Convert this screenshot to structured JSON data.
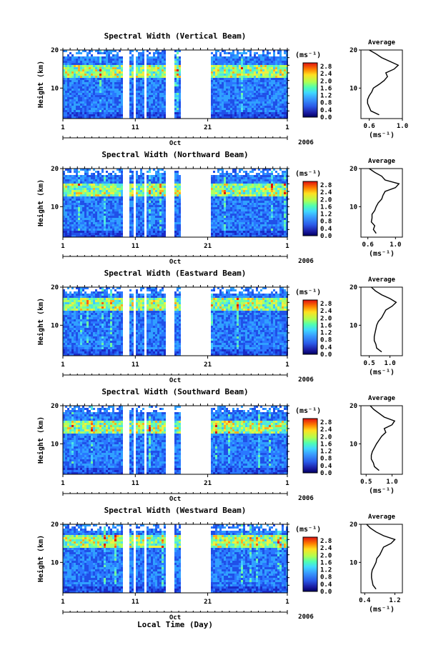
{
  "figure": {
    "xlabel": "Local Time (Day)",
    "month_label": "Oct",
    "year_label": "2006",
    "x_ticks": [
      "1",
      "11",
      "21",
      "1"
    ],
    "y_ticks": [
      "20",
      "10"
    ],
    "y_label": "Height (km)",
    "colorbar_unit": "(ms⁻¹)",
    "colorbar_ticks": [
      "0.0",
      "0.4",
      "0.8",
      "1.2",
      "1.6",
      "2.0",
      "2.4",
      "2.8"
    ],
    "avg_title": "Average",
    "avg_unit": "(ms⁻¹)"
  },
  "chart_data": [
    {
      "type": "heatmap",
      "title": "Spectral Width (Vertical Beam)",
      "xlabel": "",
      "ylabel": "Height (km)",
      "x_range_days": [
        1,
        32
      ],
      "y_range_km": [
        2,
        20
      ],
      "z_range": [
        0,
        3.0
      ],
      "z_unit": "ms-1",
      "enhanced_layer_km": 15,
      "data_gaps_days": [
        [
          9,
          10
        ],
        [
          10.5,
          11
        ],
        [
          12,
          12.5
        ],
        [
          15,
          16.3
        ],
        [
          17,
          21.2
        ]
      ],
      "profile": {
        "title": "Average",
        "xlim": [
          0.5,
          1.0
        ],
        "xticks": [
          "0.6",
          "1.0"
        ],
        "heights_km": [
          3,
          4,
          5,
          6,
          7,
          8,
          9,
          10,
          11,
          12,
          13,
          14,
          15,
          16,
          17,
          18,
          19,
          20
        ],
        "values": [
          0.72,
          0.62,
          0.6,
          0.58,
          0.58,
          0.6,
          0.63,
          0.65,
          0.72,
          0.78,
          0.82,
          0.8,
          0.9,
          0.95,
          0.85,
          0.75,
          0.68,
          0.6
        ]
      }
    },
    {
      "type": "heatmap",
      "title": "Spectral Width (Northward Beam)",
      "xlabel": "",
      "ylabel": "Height (km)",
      "x_range_days": [
        1,
        32
      ],
      "y_range_km": [
        2,
        20
      ],
      "z_range": [
        0,
        3.0
      ],
      "z_unit": "ms-1",
      "enhanced_layer_km": 15,
      "data_gaps_days": [
        [
          9,
          10
        ],
        [
          10.5,
          11
        ],
        [
          12,
          12.5
        ],
        [
          15,
          16.3
        ],
        [
          17,
          21.2
        ]
      ],
      "profile": {
        "title": "Average",
        "xlim": [
          0.5,
          1.1
        ],
        "xticks": [
          "0.6",
          "1.0"
        ],
        "heights_km": [
          3,
          4,
          5,
          6,
          7,
          8,
          9,
          10,
          11,
          12,
          13,
          14,
          15,
          16,
          17,
          18,
          19,
          20
        ],
        "values": [
          0.72,
          0.68,
          0.7,
          0.65,
          0.66,
          0.66,
          0.7,
          0.72,
          0.75,
          0.8,
          0.82,
          0.85,
          1.0,
          1.05,
          0.85,
          0.8,
          0.7,
          0.62
        ]
      }
    },
    {
      "type": "heatmap",
      "title": "Spectral Width (Eastward Beam)",
      "xlabel": "",
      "ylabel": "Height (km)",
      "x_range_days": [
        1,
        32
      ],
      "y_range_km": [
        2,
        20
      ],
      "z_range": [
        0,
        3.0
      ],
      "z_unit": "ms-1",
      "enhanced_layer_km": 16,
      "data_gaps_days": [
        [
          9,
          10
        ],
        [
          10.5,
          11
        ],
        [
          12,
          12.5
        ],
        [
          15,
          16.3
        ],
        [
          17,
          21.2
        ]
      ],
      "profile": {
        "title": "Average",
        "xlim": [
          0.3,
          1.3
        ],
        "xticks": [
          "0.5",
          "1.0"
        ],
        "heights_km": [
          3,
          4,
          5,
          6,
          7,
          8,
          9,
          10,
          11,
          12,
          13,
          14,
          15,
          16,
          17,
          18,
          19,
          20
        ],
        "values": [
          0.8,
          0.68,
          0.66,
          0.62,
          0.62,
          0.64,
          0.66,
          0.68,
          0.72,
          0.8,
          0.85,
          0.9,
          1.05,
          1.15,
          1.0,
          0.8,
          0.65,
          0.55
        ]
      }
    },
    {
      "type": "heatmap",
      "title": "Spectral Width (Southward Beam)",
      "xlabel": "",
      "ylabel": "Height (km)",
      "x_range_days": [
        1,
        32
      ],
      "y_range_km": [
        2,
        20
      ],
      "z_range": [
        0,
        3.0
      ],
      "z_unit": "ms-1",
      "enhanced_layer_km": 15,
      "data_gaps_days": [
        [
          9,
          10
        ],
        [
          10.5,
          11
        ],
        [
          12,
          12.5
        ],
        [
          15,
          16.3
        ],
        [
          17,
          21.2
        ]
      ],
      "profile": {
        "title": "Average",
        "xlim": [
          0.4,
          1.2
        ],
        "xticks": [
          "0.5",
          "1.0"
        ],
        "heights_km": [
          3,
          4,
          5,
          6,
          7,
          8,
          9,
          10,
          11,
          12,
          13,
          14,
          15,
          16,
          17,
          18,
          19,
          20
        ],
        "values": [
          0.75,
          0.66,
          0.64,
          0.6,
          0.6,
          0.62,
          0.66,
          0.7,
          0.75,
          0.8,
          0.88,
          0.85,
          1.0,
          1.05,
          0.85,
          0.75,
          0.65,
          0.58
        ]
      }
    },
    {
      "type": "heatmap",
      "title": "Spectral Width (Westward Beam)",
      "xlabel": "Local Time (Day)",
      "ylabel": "Height (km)",
      "x_range_days": [
        1,
        32
      ],
      "y_range_km": [
        2,
        20
      ],
      "z_range": [
        0,
        3.0
      ],
      "z_unit": "ms-1",
      "enhanced_layer_km": 16,
      "data_gaps_days": [
        [
          9,
          10
        ],
        [
          10.5,
          11
        ],
        [
          12,
          12.5
        ],
        [
          15,
          16.3
        ],
        [
          17,
          21.2
        ]
      ],
      "profile": {
        "title": "Average",
        "xlim": [
          0.3,
          1.4
        ],
        "xticks": [
          "0.4",
          "1.2"
        ],
        "heights_km": [
          3,
          4,
          5,
          6,
          7,
          8,
          9,
          10,
          11,
          12,
          13,
          14,
          15,
          16,
          17,
          18,
          19,
          20
        ],
        "values": [
          0.7,
          0.62,
          0.6,
          0.58,
          0.58,
          0.6,
          0.65,
          0.7,
          0.72,
          0.8,
          0.85,
          0.9,
          1.1,
          1.2,
          0.9,
          0.7,
          0.55,
          0.45
        ]
      }
    }
  ]
}
